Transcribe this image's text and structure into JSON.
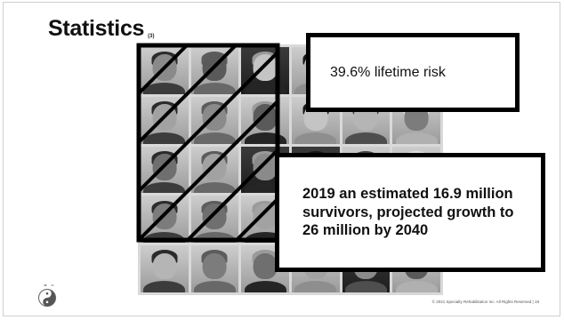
{
  "slide": {
    "title": "Statistics",
    "title_reference": "(3)",
    "callouts": {
      "risk_text": "39.6% lifetime risk",
      "survivors_text": "2019 an estimated 16.9 million survivors, projected growth to 26 million by 2040"
    },
    "footer": {
      "copyright": "© 2021 Specialty Rehabilitation Inc. All Rights Reserved",
      "separator": "|",
      "page_number": "19"
    }
  },
  "photo_grid": {
    "rows": 5,
    "columns": 6,
    "hatched_rows": 4,
    "hatched_columns": 3
  },
  "colors": {
    "frame_border": "#000000",
    "hatch_lines": "#000000",
    "grid_background": "#d9d9d9",
    "text": "#111111"
  },
  "icons": {
    "logo": "yin-yang-leaf-logo"
  }
}
